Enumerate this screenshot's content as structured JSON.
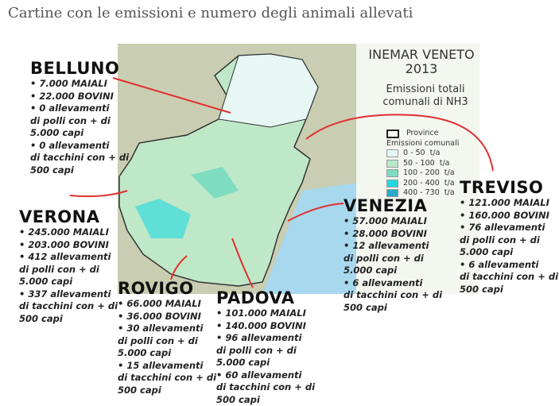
{
  "title": "Cartine con le emissioni e numero degli animali allevati",
  "map_header": {
    "line1": "INEMAR VENETO",
    "line2": "2013",
    "subtitle1": "Emissioni totali",
    "subtitle2": "comunali di NH3"
  },
  "legend": {
    "province": "Province",
    "heading": "Emissioni comunali",
    "classes": [
      {
        "label": "0 - 50  t/a",
        "color": "#e6f7f4"
      },
      {
        "label": "50 - 100  t/a",
        "color": "#b8e8c8"
      },
      {
        "label": "100 - 200  t/a",
        "color": "#7edcc0"
      },
      {
        "label": "200 - 400  t/a",
        "color": "#22d8e0"
      },
      {
        "label": "400 - 730  t/a",
        "color": "#2aaac8"
      }
    ]
  },
  "colors": {
    "leader_line": "#e03030",
    "sea": "#a8d8ee",
    "terrain": "#c8cdb0"
  },
  "provinces": {
    "belluno": {
      "name": "BELLUNO",
      "lines": [
        "• 7.000 MAIALI",
        "• 22.000 BOVINI",
        "• 0 allevamenti",
        "di polli con + di",
        "5.000 capi",
        "• 0 allevamenti",
        "di tacchini con + di",
        "500 capi"
      ]
    },
    "verona": {
      "name": "VERONA",
      "lines": [
        "• 245.000 MAIALI",
        "• 203.000 BOVINI",
        "• 412 allevamenti",
        "di polli con + di",
        "5.000 capi",
        "• 337 allevamenti",
        "di tacchini con + di",
        "500 capi"
      ]
    },
    "rovigo": {
      "name": "ROVIGO",
      "lines": [
        "• 66.000 MAIALI",
        "• 36.000 BOVINI",
        "• 30 allevamenti",
        "di polli con + di",
        "5.000 capi",
        "• 15 allevamenti",
        "di tacchini con + di",
        "500 capi"
      ]
    },
    "padova": {
      "name": "PADOVA",
      "lines": [
        "• 101.000 MAIALI",
        "• 140.000 BOVINI",
        "• 96 allevamenti",
        "di polli con + di",
        "5.000 capi",
        "• 60 allevamenti",
        "di tacchini con + di",
        "500 capi"
      ]
    },
    "venezia": {
      "name": "VENEZIA",
      "lines": [
        "• 57.000 MAIALI",
        "• 28.000 BOVINI",
        "• 12 allevamenti",
        "di polli con + di",
        "5.000 capi",
        "• 6 allevamenti",
        "di tacchini con + di",
        "500 capi"
      ]
    },
    "treviso": {
      "name": "TREVISO",
      "lines": [
        "• 121.000 MAIALI",
        "• 160.000 BOVINI",
        "• 76 allevamenti",
        "di polli con + di",
        "5.000 capi",
        "• 6 allevamenti",
        "di tacchini con + di",
        "500 capi"
      ]
    }
  }
}
